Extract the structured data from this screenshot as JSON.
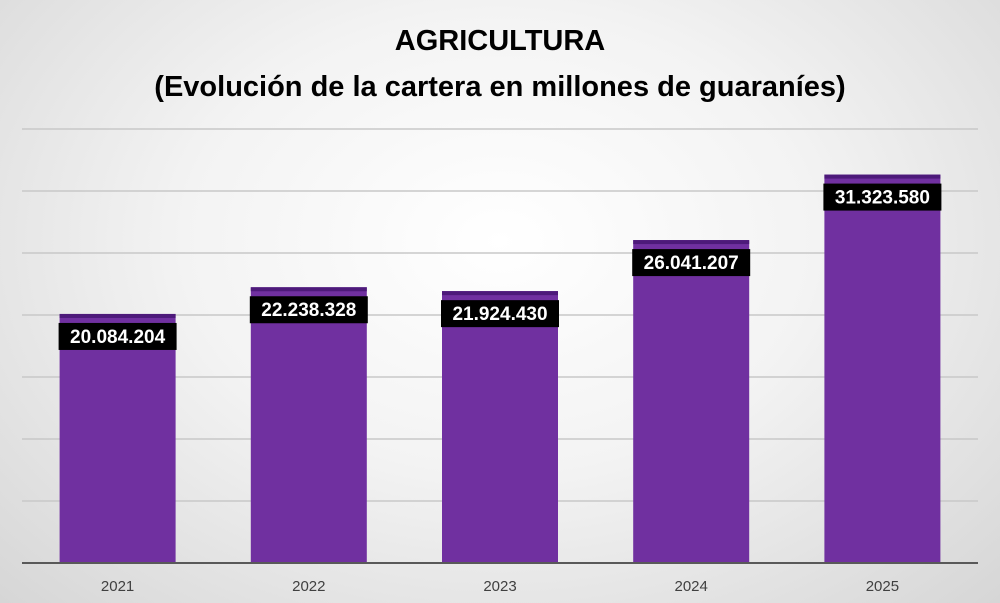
{
  "chart_data": {
    "type": "bar",
    "title": "AGRICULTURA",
    "subtitle": "(Evolución de la cartera en millones de guaraníes)",
    "categories": [
      "2021",
      "2022",
      "2023",
      "2024",
      "2025"
    ],
    "values": [
      20084204,
      22238328,
      21924430,
      26041207,
      31323580
    ],
    "value_labels": [
      "20.084.204",
      "22.238.328",
      "21.924.430",
      "26.041.207",
      "31.323.580"
    ],
    "ylim": [
      0,
      35000000
    ],
    "grid": true,
    "legend": "none",
    "colors": {
      "bar": "#7030a0",
      "bar_top": "#4d1a7a",
      "label_bg": "#000000",
      "label_text": "#ffffff",
      "gridline": "#c8c8c8",
      "axis": "#595959"
    }
  }
}
